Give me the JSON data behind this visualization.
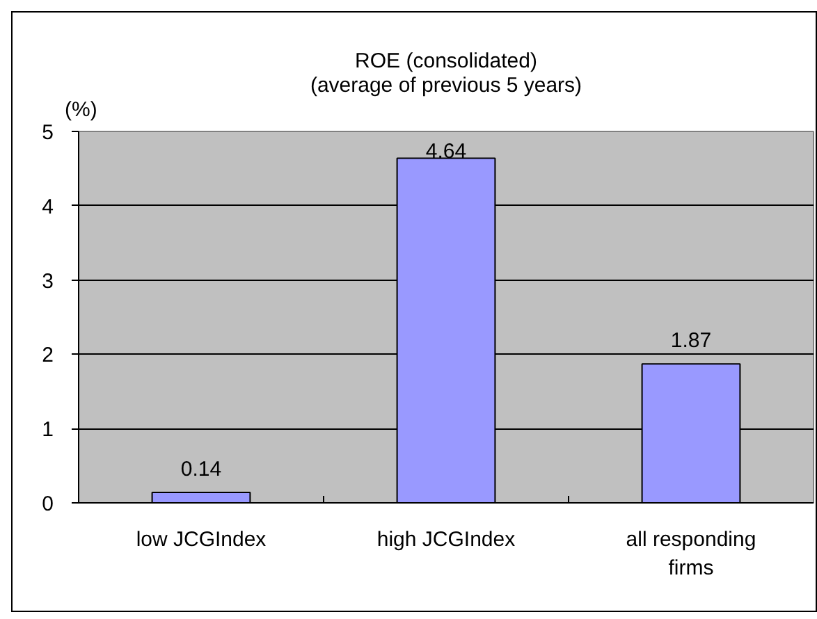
{
  "chart_data": {
    "type": "bar",
    "title": "ROE (consolidated)",
    "subtitle": "(average of previous 5 years)",
    "ylabel": "(%)",
    "categories": [
      "low JCGIndex",
      "high JCGIndex",
      "all responding firms"
    ],
    "values": [
      0.14,
      4.64,
      1.87
    ],
    "color": "#9999ff",
    "ylim": [
      0,
      5
    ],
    "yticks": [
      0,
      1,
      2,
      3,
      4,
      5
    ],
    "grid": "y",
    "data_labels": true
  }
}
